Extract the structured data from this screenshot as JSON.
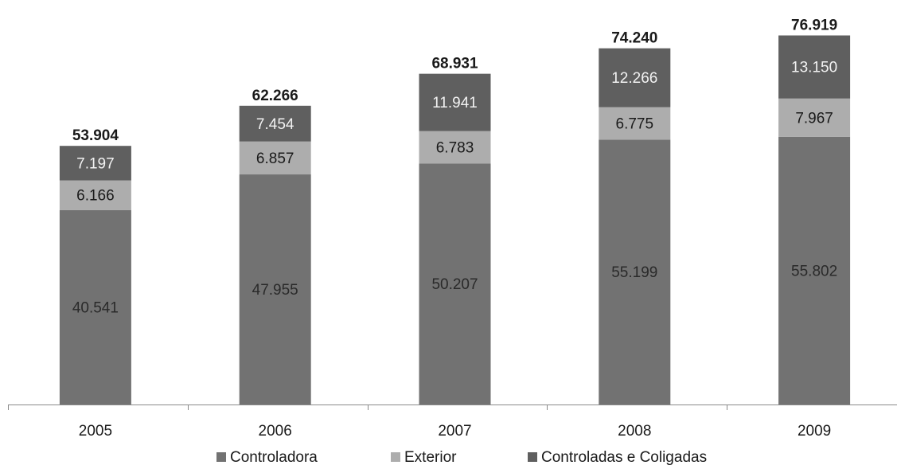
{
  "chart_data": {
    "type": "bar",
    "stacked": true,
    "categories": [
      "2005",
      "2006",
      "2007",
      "2008",
      "2009"
    ],
    "series": [
      {
        "name": "Controladora",
        "values": [
          "40.541",
          "47.955",
          "50.207",
          "55.199",
          "55.802"
        ],
        "color": "#727272",
        "label_color": "#2a2a2a"
      },
      {
        "name": "Exterior",
        "values": [
          "6.166",
          "6.857",
          "6.783",
          "6.775",
          "7.967"
        ],
        "color": "#adadad",
        "label_color": "#1a1a1a"
      },
      {
        "name": "Controladas e Coligadas",
        "values": [
          "7.197",
          "7.454",
          "11.941",
          "12.266",
          "13.150"
        ],
        "color": "#5f5f5f",
        "label_color": "#f2f2f2"
      }
    ],
    "totals": [
      "53.904",
      "62.266",
      "68.931",
      "74.240",
      "76.919"
    ],
    "ylim": [
      0,
      78000
    ],
    "grid": false,
    "legend": "bottom"
  }
}
